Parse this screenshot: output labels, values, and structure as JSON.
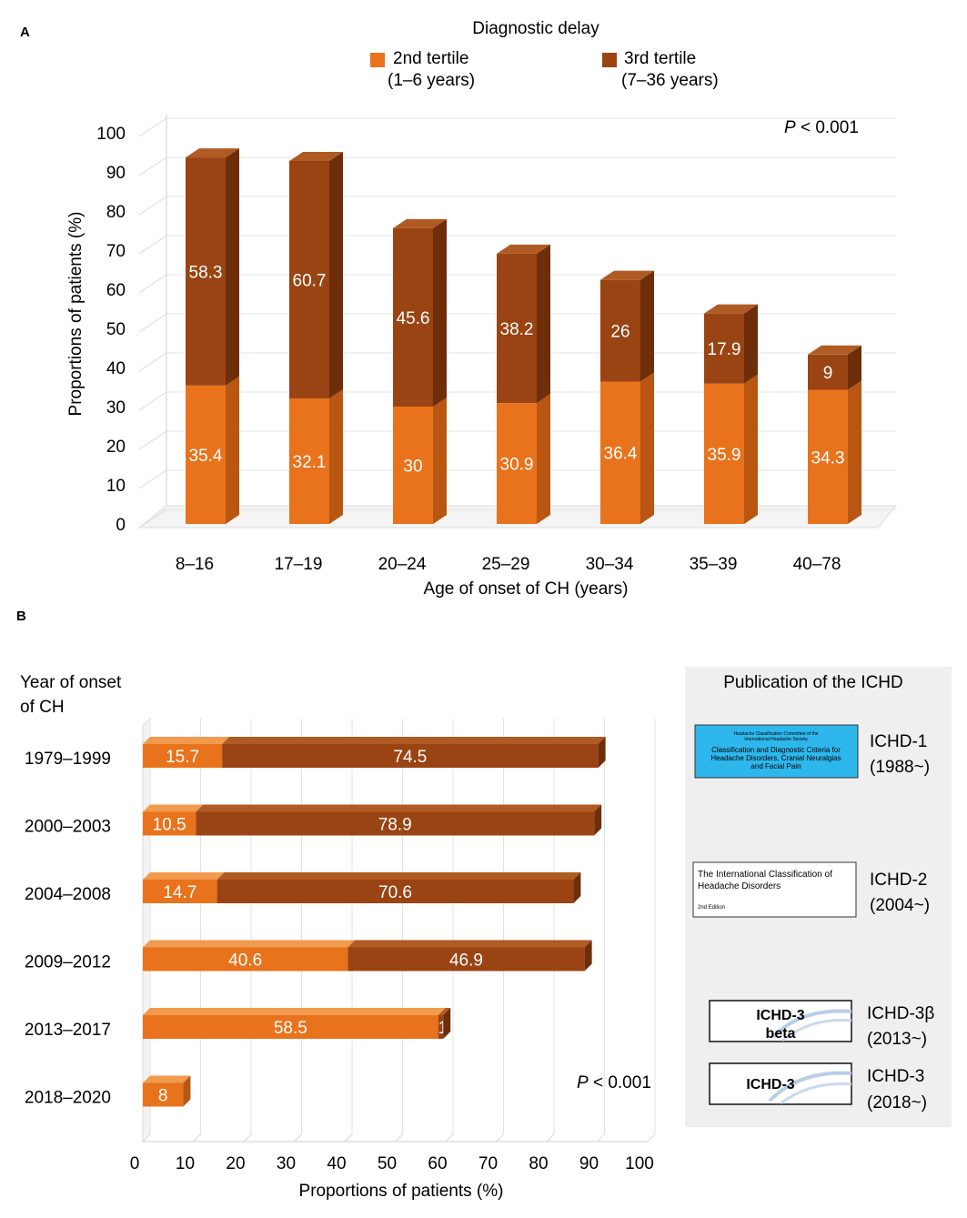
{
  "colors": {
    "tertile2": "#E8731C",
    "tertile2_side": "#B85612",
    "tertile2_top": "#F29A4E",
    "tertile3": "#9A4413",
    "tertile3_side": "#6E2E0A",
    "tertile3_top": "#B05A24",
    "ichd1_cover": "#2DB7EC",
    "publication_bg": "#EFEFEF"
  },
  "chart_data": [
    {
      "panel": "A",
      "type": "bar",
      "stacked": true,
      "orientation": "vertical",
      "legend_title": "Diagnostic delay",
      "categories": [
        "8–16",
        "17–19",
        "20–24",
        "25–29",
        "30–34",
        "35–39",
        "40–78"
      ],
      "series": [
        {
          "name": "2nd tertile",
          "range": "(1–6 years)",
          "values": [
            35.4,
            32.1,
            30,
            30.9,
            36.4,
            35.9,
            34.3
          ]
        },
        {
          "name": "3rd tertile",
          "range": "(7–36 years)",
          "values": [
            58.3,
            60.7,
            45.6,
            38.2,
            26,
            17.9,
            9
          ]
        }
      ],
      "xlabel": "Age of onset of CH (years)",
      "ylabel": "Proportions of patients (%)",
      "ylim": [
        0,
        100
      ],
      "yticks": [
        0,
        10,
        20,
        30,
        40,
        50,
        60,
        70,
        80,
        90,
        100
      ],
      "annotation_prefix": "P",
      "annotation": " < 0.001"
    },
    {
      "panel": "B",
      "type": "bar",
      "stacked": true,
      "orientation": "horizontal",
      "categories": [
        "1979–1999",
        "2000–2003",
        "2004–2008",
        "2009–2012",
        "2013–2017",
        "2018–2020"
      ],
      "series": [
        {
          "name": "2nd tertile",
          "values": [
            15.7,
            10.5,
            14.7,
            40.6,
            58.5,
            8
          ]
        },
        {
          "name": "3rd tertile",
          "values": [
            74.5,
            78.9,
            70.6,
            46.9,
            1,
            0
          ]
        }
      ],
      "ylabel_lines": [
        "Year of onset",
        "of CH"
      ],
      "xlabel": "Proportions of patients (%)",
      "xlim": [
        0,
        100
      ],
      "xticks": [
        0,
        10,
        20,
        30,
        40,
        50,
        60,
        70,
        80,
        90,
        100
      ],
      "annotation_prefix": "P",
      "annotation": " < 0.001"
    }
  ],
  "panel_labels": {
    "a": "A",
    "b": "B"
  },
  "publication": {
    "title": "Publication of the ICHD",
    "items": [
      {
        "label": "ICHD-1",
        "years": "(1988~)",
        "cover_lines": [
          "Headache Classification Committee of the",
          "International Headache Society",
          "Classification and Diagnostic Criteria for",
          "Headache Disorders, Cranial Neuralgias",
          "and Facial Pain"
        ]
      },
      {
        "label": "ICHD-2",
        "years": "(2004~)",
        "cover_lines": [
          "The International Classification of",
          "Headache Disorders",
          "2nd Edition"
        ]
      },
      {
        "label": "ICHD-3β",
        "years": "(2013~)",
        "cover_lines": [
          "ICHD-3",
          "beta"
        ]
      },
      {
        "label": "ICHD-3",
        "years": "(2018~)",
        "cover_lines": [
          "ICHD-3"
        ]
      }
    ]
  }
}
